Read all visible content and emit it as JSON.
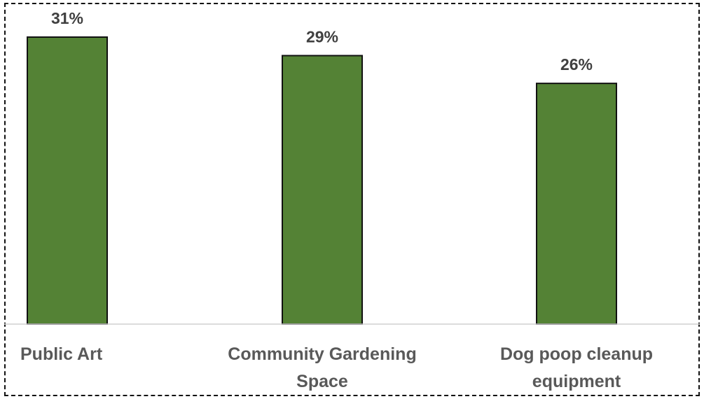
{
  "chart_data": {
    "type": "bar",
    "categories": [
      "Public Art",
      "Community Gardening Space",
      "Dog poop cleanup equipment"
    ],
    "category_lines": [
      [
        "Public Art"
      ],
      [
        "Community Gardening",
        "Space"
      ],
      [
        "Dog poop cleanup",
        "equipment"
      ]
    ],
    "values": [
      31,
      29,
      26
    ],
    "data_labels": [
      "31%",
      "29%",
      "26%"
    ],
    "value_unit": "%",
    "ylim": [
      0,
      31
    ],
    "grid": false,
    "legend": "none",
    "bar_color": "#548235",
    "title": "",
    "xlabel": "",
    "ylabel": ""
  }
}
